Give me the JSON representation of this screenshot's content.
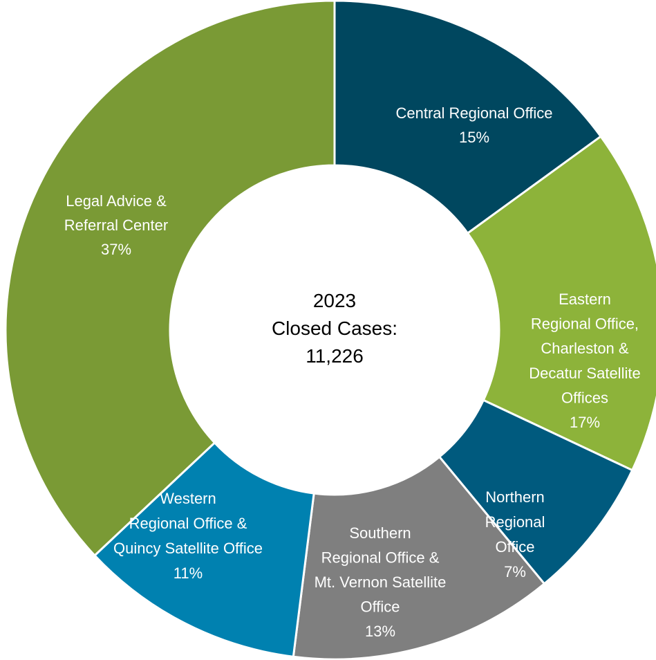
{
  "chart_data": {
    "type": "donut",
    "center_text": [
      "2023",
      "Closed Cases:",
      "11,226"
    ],
    "categories": [
      [
        "Central Regional Office"
      ],
      [
        "Eastern",
        "Regional Office,",
        "Charleston &",
        "Decatur Satellite",
        "Offices"
      ],
      [
        "Northern",
        "Regional",
        "Office"
      ],
      [
        "Southern",
        "Regional Office &",
        "Mt. Vernon Satellite",
        "Office"
      ],
      [
        "Western",
        "Regional Office &",
        "Quincy Satellite Office"
      ],
      [
        "Legal Advice &",
        "Referral Center"
      ]
    ],
    "values": [
      15,
      17,
      7,
      13,
      11,
      37
    ],
    "value_labels": [
      "15%",
      "17%",
      "7%",
      "13%",
      "11%",
      "37%"
    ],
    "colors": [
      "#00475f",
      "#8db33a",
      "#005a7e",
      "#7f7f7f",
      "#0081b0",
      "#7a9a35"
    ]
  }
}
